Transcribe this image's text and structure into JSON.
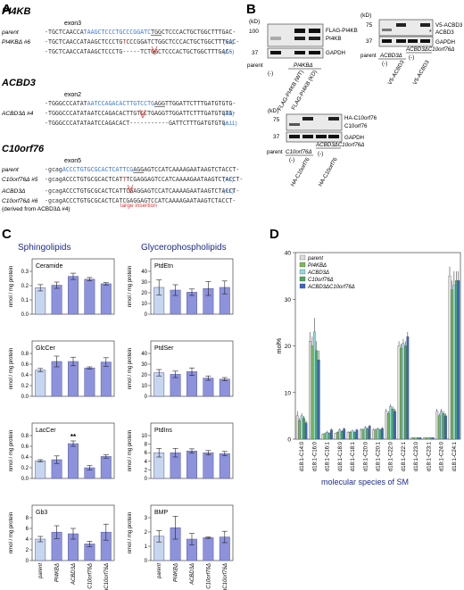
{
  "panelA": {
    "letter": "A",
    "blocks": [
      {
        "gene": "PI4KB",
        "exon": "exon3",
        "rows": [
          {
            "label": "parent",
            "segments": [
              [
                "-TGCTCAACCA",
                "k"
              ],
              [
                "TAAGCTCCCTGCCCGGATC",
                "b"
              ],
              [
                "TGG",
                "u"
              ],
              [
                "CTCCCACTGCTGGCTTTGAC-",
                "k"
              ]
            ],
            "note": ""
          },
          {
            "label": "PI4KBΔ #6",
            "segments": [
              [
                "-TGCTCAACCATAAGCTCCCTG",
                "k"
              ],
              [
                "T",
                "r"
              ],
              [
                "CCCGGATCTGGCTCCCACTGCTGGCTTTGAC-",
                "k"
              ]
            ],
            "note": "(+1)"
          },
          {
            "label": "",
            "segments": [
              [
                "-TGCTCAACCATAAGCTCCCTG-----TCTGGCTCCCACTGCTGGCTTTGAC-",
                "k"
              ]
            ],
            "note": "(Δ5)"
          }
        ]
      },
      {
        "gene": "ACBD3",
        "exon": "exon2",
        "rows": [
          {
            "label": "",
            "segments": [
              [
                "-TGGGCCCATAT",
                "k"
              ],
              [
                "AATCCAGACACTTGTCCTG",
                "b"
              ],
              [
                "AGG",
                "u"
              ],
              [
                "TTGGATTCTTTGATGTGTG-",
                "k"
              ]
            ],
            "note": ""
          },
          {
            "label": "ACBD3Δ #4",
            "segments": [
              [
                "-TGGGCCCATATAATCCAGACACTTGTCCTGAGGTTGGATTCTTTGATGTGTG-",
                "k"
              ]
            ],
            "note": "(Δ1)"
          },
          {
            "label": "",
            "segments": [
              [
                "-TGGGCCCATATAATCCAGACACT-----------GATTCTTTGATGTGTG-",
                "k"
              ]
            ],
            "note": "(Δ11)"
          }
        ]
      },
      {
        "gene": "C10orf76",
        "exon": "exon5",
        "rows": [
          {
            "label": "parent",
            "segments": [
              [
                "-gcag",
                "k"
              ],
              [
                "ACCCTGTGCGCACTCATTCG",
                "b"
              ],
              [
                "AGG",
                "u"
              ],
              [
                "AGTCCATCAAAAGAATAAGTCTACCT-",
                "k"
              ]
            ],
            "note": ""
          },
          {
            "label": "C10orf76Δ #5",
            "segments": [
              [
                "-gcagACCCTGTGCGCACTCAT",
                "k"
              ],
              [
                "T",
                "r"
              ],
              [
                "TCGAGGAGTCCATCAAAAGAATAAGTCTACCT-",
                "k"
              ]
            ],
            "note": "(+1)"
          }
        ]
      },
      {
        "gene": "",
        "exon": "",
        "rows": [
          {
            "label": "ACBD3Δ",
            "segments": [
              [
                "-gcagACCCTGTGCGCACTCATTCGAGGAGTCCATCAAAAGAATAAGTCTACCT-",
                "k"
              ]
            ],
            "note": "(+1)"
          },
          {
            "label": "C10orf76Δ #6",
            "segments": [
              [
                "-gcagACCCTGTGCGCACTCATCGAGGAGTCCATCAAAAGAATAAGTCTACCT-",
                "k"
              ]
            ],
            "note": ""
          }
        ]
      }
    ],
    "derived_note": "(derived from ACBD3Δ #4)",
    "insertion_note": "large insertion"
  },
  "panelB": {
    "letter": "B",
    "blot1": {
      "kd": "(kD)",
      "markers": [
        "100",
        "37"
      ],
      "bands": [
        "FLAG-PI4KB",
        "PI4KB",
        "GAPDH"
      ],
      "lanes": [
        "(-)",
        "FLAG-PI4KB (WT)",
        "FLAG-PI4KB (KD)"
      ],
      "group": "PI4KBΔ",
      "parent": "parent"
    },
    "blot2": {
      "kd": "(kD)",
      "markers": [
        "75",
        "37"
      ],
      "bands": [
        "V5-ACBD3",
        "ACBD3",
        "GAPDH"
      ],
      "lanes": [
        "(-)",
        "V5-ACBD3",
        "(-)",
        "V5-ACBD3"
      ],
      "groups": [
        "ACBD3Δ",
        "ACBD3ΔC10orf76Δ"
      ],
      "parent": "parent",
      "star": "*"
    },
    "blot3": {
      "kd": "(kD)",
      "markers": [
        "75",
        "37"
      ],
      "bands": [
        "HA-C10orf76",
        "C10orf76",
        "GAPDH"
      ],
      "lanes": [
        "(-)",
        "HA-C10orf76",
        "(-)",
        "HA-C10orf76"
      ],
      "groups": [
        "C10orf76Δ",
        "ACBD3ΔC10orf76Δ"
      ],
      "parent": "parent"
    }
  },
  "panelC": {
    "letter": "C",
    "col1_title": "Sphingolipids",
    "col2_title": "Glycerophospholipids",
    "ylabel": "nmol / mg protein",
    "colors": {
      "parent": "#c6d6ef",
      "mutant": "#8c92dc",
      "edge": "#555a9a"
    },
    "chart_data": [
      {
        "type": "bar",
        "title": "Ceramide",
        "categories": [
          "parent",
          "PI4KBΔ",
          "ACBD3Δ",
          "C10orf76Δ",
          "ACBD3ΔC10orf76Δ"
        ],
        "values": [
          0.185,
          0.203,
          0.265,
          0.245,
          0.213
        ],
        "errors": [
          0.022,
          0.022,
          0.022,
          0.012,
          0.008
        ],
        "ylim": [
          0,
          0.3
        ],
        "ticks": [
          0,
          0.1,
          0.2,
          0.3
        ],
        "tick_labels": [
          "0.0",
          "0.1",
          "0.2",
          "0.3"
        ],
        "sig": ""
      },
      {
        "type": "bar",
        "title": "PtdEtn",
        "categories": [
          "parent",
          "PI4KBΔ",
          "ACBD3Δ",
          "C10orf76Δ",
          "ACBD3ΔC10orf76Δ"
        ],
        "values": [
          25,
          22.5,
          20.5,
          24,
          25
        ],
        "errors": [
          7,
          5,
          3,
          6.5,
          6
        ],
        "ylim": [
          0,
          40
        ],
        "ticks": [
          0,
          10,
          20,
          30,
          40
        ],
        "tick_labels": [
          "0",
          "10",
          "20",
          "30",
          "40"
        ],
        "sig": ""
      },
      {
        "type": "bar",
        "title": "GlcCer",
        "categories": [
          "parent",
          "PI4KBΔ",
          "ACBD3Δ",
          "C10orf76Δ",
          "ACBD3ΔC10orf76Δ"
        ],
        "values": [
          0.49,
          0.65,
          0.65,
          0.53,
          0.64
        ],
        "errors": [
          0.03,
          0.1,
          0.08,
          0.02,
          0.08
        ],
        "ylim": [
          0,
          0.8
        ],
        "ticks": [
          0,
          0.2,
          0.4,
          0.6,
          0.8
        ],
        "tick_labels": [
          "0.0",
          "0.2",
          "0.4",
          "0.6",
          "0.8"
        ],
        "sig": ""
      },
      {
        "type": "bar",
        "title": "PtdSer",
        "categories": [
          "parent",
          "PI4KBΔ",
          "ACBD3Δ",
          "C10orf76Δ",
          "ACBD3ΔC10orf76Δ"
        ],
        "values": [
          22,
          20.5,
          23,
          17,
          16
        ],
        "errors": [
          3,
          3,
          3.5,
          2,
          1.5
        ],
        "ylim": [
          0,
          40
        ],
        "ticks": [
          0,
          10,
          20,
          30,
          40
        ],
        "tick_labels": [
          "0",
          "10",
          "20",
          "30",
          "40"
        ],
        "sig": ""
      },
      {
        "type": "bar",
        "title": "LacCer",
        "categories": [
          "parent",
          "PI4KBΔ",
          "ACBD3Δ",
          "C10orf76Δ",
          "ACBD3ΔC10orf76Δ"
        ],
        "values": [
          0.33,
          0.35,
          0.65,
          0.2,
          0.41
        ],
        "errors": [
          0.02,
          0.07,
          0.05,
          0.04,
          0.03
        ],
        "ylim": [
          0,
          0.8
        ],
        "ticks": [
          0,
          0.2,
          0.4,
          0.6,
          0.8
        ],
        "tick_labels": [
          "0.0",
          "0.2",
          "0.4",
          "0.6",
          "0.8"
        ],
        "sig": "**",
        "sig_index": 2
      },
      {
        "type": "bar",
        "title": "PtdIns",
        "categories": [
          "parent",
          "PI4KBΔ",
          "ACBD3Δ",
          "C10orf76Δ",
          "ACBD3ΔC10orf76Δ"
        ],
        "values": [
          6,
          6,
          6.4,
          6,
          5.8
        ],
        "errors": [
          1,
          1,
          0.5,
          0.5,
          0.5
        ],
        "ylim": [
          0,
          10
        ],
        "ticks": [
          0,
          2,
          4,
          6,
          8,
          10
        ],
        "tick_labels": [
          "0",
          "2",
          "4",
          "6",
          "8",
          "10"
        ],
        "sig": ""
      },
      {
        "type": "bar",
        "title": "Gb3",
        "categories": [
          "parent",
          "PI4KBΔ",
          "ACBD3Δ",
          "C10orf76Δ",
          "ACBD3ΔC10orf76Δ"
        ],
        "values": [
          4,
          5.3,
          5,
          3.1,
          5.3
        ],
        "errors": [
          0.5,
          1.2,
          1,
          0.5,
          1.5
        ],
        "ylim": [
          0,
          8
        ],
        "ticks": [
          0,
          2,
          4,
          6,
          8
        ],
        "tick_labels": [
          "0",
          "2",
          "4",
          "6",
          "8"
        ],
        "sig": ""
      },
      {
        "type": "bar",
        "title": "BMP",
        "categories": [
          "parent",
          "PI4KBΔ",
          "ACBD3Δ",
          "C10orf76Δ",
          "ACBD3ΔC10orf76Δ"
        ],
        "values": [
          1.7,
          2.3,
          1.5,
          1.6,
          1.65
        ],
        "errors": [
          0.4,
          0.8,
          0.4,
          0.05,
          0.4
        ],
        "ylim": [
          0,
          3
        ],
        "ticks": [
          0,
          1,
          2,
          3
        ],
        "tick_labels": [
          "0",
          "1",
          "2",
          "3"
        ],
        "sig": ""
      }
    ]
  },
  "panelD": {
    "letter": "D",
    "chart_data": {
      "type": "bar",
      "ylabel": "mol%",
      "xlabel": "molecular species of SM",
      "ylim": [
        0,
        40
      ],
      "ticks": [
        0,
        10,
        20,
        30,
        40
      ],
      "tick_labels": [
        "0",
        "10",
        "20",
        "30",
        "40"
      ],
      "categories": [
        "d18:1-C14:0",
        "d18:1-C16:0",
        "d18:1-C16:1",
        "d18:1-C18:0",
        "d18:1-C18:1",
        "d18:1-C20:0",
        "d18:1-C20:1",
        "d18:1-C22:0",
        "d18:1-C22:1",
        "d18:1-C23:0",
        "d18:1-C23:1",
        "d18:1-C24:0",
        "d18:1-C24:1"
      ],
      "series": [
        {
          "name": "parent",
          "color": "#dcdcdc",
          "values": [
            5,
            21,
            1,
            1.2,
            1.5,
            2,
            2,
            6,
            20,
            0.3,
            0.3,
            6,
            35
          ],
          "errors": [
            1,
            2,
            0.2,
            0.2,
            0.2,
            0.3,
            0.3,
            0.5,
            1,
            0.1,
            0.1,
            0.5,
            2
          ]
        },
        {
          "name": "PI4KBΔ",
          "color": "#7ab857",
          "values": [
            4,
            20,
            1.2,
            1.5,
            1.5,
            2,
            2,
            5.5,
            19.5,
            0.3,
            0.3,
            5,
            32
          ],
          "errors": [
            0.5,
            2,
            0.2,
            0.2,
            0.2,
            0.3,
            0.3,
            0.5,
            1,
            0.1,
            0.1,
            0.5,
            2
          ]
        },
        {
          "name": "ACBD3Δ",
          "color": "#8fd9df",
          "values": [
            5,
            23,
            1.5,
            2,
            1.8,
            2.5,
            2.2,
            7,
            20.5,
            0.3,
            0.3,
            6,
            33
          ],
          "errors": [
            0.6,
            3,
            0.3,
            0.3,
            0.2,
            0.3,
            0.3,
            0.5,
            1,
            0.1,
            0.1,
            0.5,
            3
          ]
        },
        {
          "name": "C10orf76Δ",
          "color": "#4aa85e",
          "values": [
            4.5,
            19,
            1.3,
            1.7,
            1.5,
            2.2,
            2,
            6.5,
            20,
            0.3,
            0.3,
            5.5,
            34
          ],
          "errors": [
            0.5,
            2,
            0.2,
            0.2,
            0.2,
            0.3,
            0.3,
            0.5,
            1,
            0.1,
            0.1,
            0.5,
            2
          ]
        },
        {
          "name": "ACBD3ΔC10orf76Δ",
          "color": "#3c64c8",
          "values": [
            3.5,
            17,
            2,
            2.2,
            2,
            2.8,
            2.3,
            6,
            22,
            0.3,
            0.3,
            5,
            34
          ],
          "errors": [
            0.5,
            2,
            0.3,
            0.3,
            0.2,
            0.3,
            0.3,
            0.5,
            1,
            0.1,
            0.1,
            0.5,
            2
          ]
        }
      ]
    }
  }
}
